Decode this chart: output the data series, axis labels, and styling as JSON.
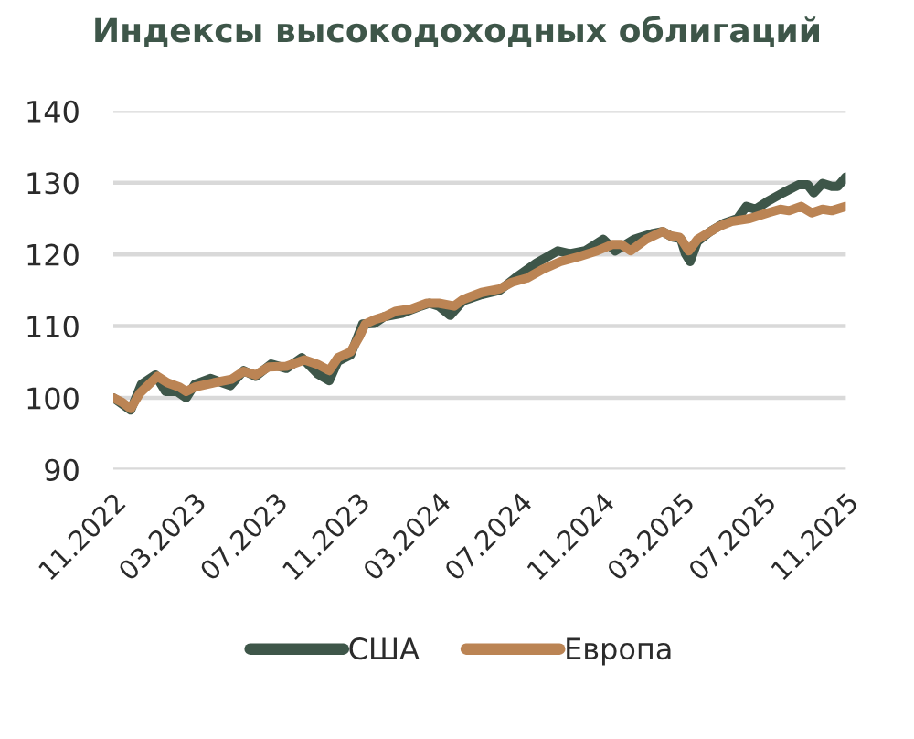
{
  "chart_data": {
    "type": "line",
    "title": "Индексы высокодоходных облигаций",
    "xlim": [
      "2022-11-01",
      "2025-11-01"
    ],
    "xticks": [
      {
        "value": "2022-11-01",
        "label": "11.2022"
      },
      {
        "value": "2023-03-01",
        "label": "03.2023"
      },
      {
        "value": "2023-07-01",
        "label": "07.2023"
      },
      {
        "value": "2023-11-01",
        "label": "11.2023"
      },
      {
        "value": "2024-03-01",
        "label": "03.2024"
      },
      {
        "value": "2024-07-01",
        "label": "07.2024"
      },
      {
        "value": "2024-11-01",
        "label": "11.2024"
      },
      {
        "value": "2025-03-01",
        "label": "03.2025"
      },
      {
        "value": "2025-07-01",
        "label": "07.2025"
      },
      {
        "value": "2025-11-01",
        "label": "11.2025"
      }
    ],
    "ylim": [
      90,
      140
    ],
    "yticks": [
      90,
      100,
      110,
      120,
      130,
      140
    ],
    "grid": "y",
    "legend": "bottom",
    "line_style": "solid",
    "series": [
      {
        "name": "США",
        "color": "#3e5649",
        "x": [
          "2022-11-01",
          "2022-11-27",
          "2022-12-13",
          "2023-01-03",
          "2023-01-18",
          "2023-02-04",
          "2023-02-18",
          "2023-03-03",
          "2023-03-26",
          "2023-04-25",
          "2023-05-15",
          "2023-06-02",
          "2023-06-25",
          "2023-07-18",
          "2023-08-10",
          "2023-09-02",
          "2023-09-20",
          "2023-10-03",
          "2023-10-22",
          "2023-11-09",
          "2023-11-27",
          "2023-12-11",
          "2024-01-07",
          "2024-02-04",
          "2024-02-17",
          "2024-03-02",
          "2024-03-19",
          "2024-04-07",
          "2024-05-05",
          "2024-06-01",
          "2024-06-24",
          "2024-07-26",
          "2024-08-27",
          "2024-09-14",
          "2024-10-07",
          "2024-11-03",
          "2024-11-21",
          "2024-12-19",
          "2025-01-15",
          "2025-01-31",
          "2025-02-15",
          "2025-02-27",
          "2025-03-06",
          "2025-03-13",
          "2025-03-24",
          "2025-04-12",
          "2025-05-04",
          "2025-05-23",
          "2025-06-05",
          "2025-06-19",
          "2025-07-07",
          "2025-07-30",
          "2025-08-22",
          "2025-09-05",
          "2025-09-14",
          "2025-09-27",
          "2025-10-11",
          "2025-10-20",
          "2025-11-01"
        ],
        "values": [
          100.0,
          98.3,
          101.9,
          103.2,
          100.9,
          100.9,
          100.0,
          101.9,
          102.7,
          101.7,
          103.8,
          103.0,
          104.7,
          104.1,
          105.6,
          103.4,
          102.4,
          105.1,
          106.0,
          110.3,
          110.4,
          111.3,
          111.8,
          112.8,
          113.2,
          112.8,
          111.5,
          113.5,
          114.4,
          115.0,
          116.7,
          118.8,
          120.5,
          120.1,
          120.5,
          122.1,
          120.5,
          122.1,
          122.9,
          123.2,
          122.4,
          122.2,
          120.1,
          119.0,
          121.8,
          123.2,
          124.4,
          125.0,
          126.7,
          126.3,
          127.4,
          128.6,
          129.7,
          129.7,
          128.6,
          129.9,
          129.5,
          129.5,
          130.8
        ]
      },
      {
        "name": "Европа",
        "color": "#bb8454",
        "x": [
          "2022-11-01",
          "2022-11-14",
          "2022-11-27",
          "2022-12-11",
          "2023-01-06",
          "2023-01-21",
          "2023-02-08",
          "2023-02-18",
          "2023-03-03",
          "2023-03-31",
          "2023-04-27",
          "2023-05-15",
          "2023-06-02",
          "2023-06-21",
          "2023-07-18",
          "2023-08-14",
          "2023-09-02",
          "2023-09-20",
          "2023-10-03",
          "2023-10-22",
          "2023-11-04",
          "2023-11-13",
          "2023-11-27",
          "2023-12-11",
          "2023-12-29",
          "2024-01-21",
          "2024-02-13",
          "2024-03-02",
          "2024-03-25",
          "2024-04-07",
          "2024-05-05",
          "2024-06-01",
          "2024-06-19",
          "2024-07-12",
          "2024-08-04",
          "2024-08-31",
          "2024-09-28",
          "2024-10-25",
          "2024-11-17",
          "2024-11-30",
          "2024-12-14",
          "2025-01-06",
          "2025-01-31",
          "2025-02-11",
          "2025-02-25",
          "2025-03-02",
          "2025-03-11",
          "2025-03-24",
          "2025-04-07",
          "2025-04-25",
          "2025-05-14",
          "2025-06-10",
          "2025-07-07",
          "2025-07-26",
          "2025-08-08",
          "2025-08-26",
          "2025-09-11",
          "2025-09-27",
          "2025-10-11",
          "2025-11-01"
        ],
        "values": [
          100.0,
          99.4,
          98.5,
          100.7,
          103.0,
          102.1,
          101.5,
          100.9,
          101.5,
          102.1,
          102.6,
          103.7,
          103.2,
          104.3,
          104.4,
          105.3,
          104.7,
          103.8,
          105.6,
          106.4,
          108.5,
          110.3,
          110.9,
          111.3,
          112.1,
          112.4,
          113.2,
          113.2,
          112.8,
          113.7,
          114.7,
          115.2,
          116.1,
          116.7,
          117.9,
          119.0,
          119.7,
          120.5,
          121.4,
          121.4,
          120.5,
          122.1,
          123.2,
          122.6,
          122.4,
          121.8,
          120.5,
          122.1,
          122.9,
          123.9,
          124.6,
          125.0,
          125.8,
          126.3,
          126.1,
          126.7,
          125.8,
          126.3,
          126.1,
          126.7
        ]
      }
    ]
  }
}
